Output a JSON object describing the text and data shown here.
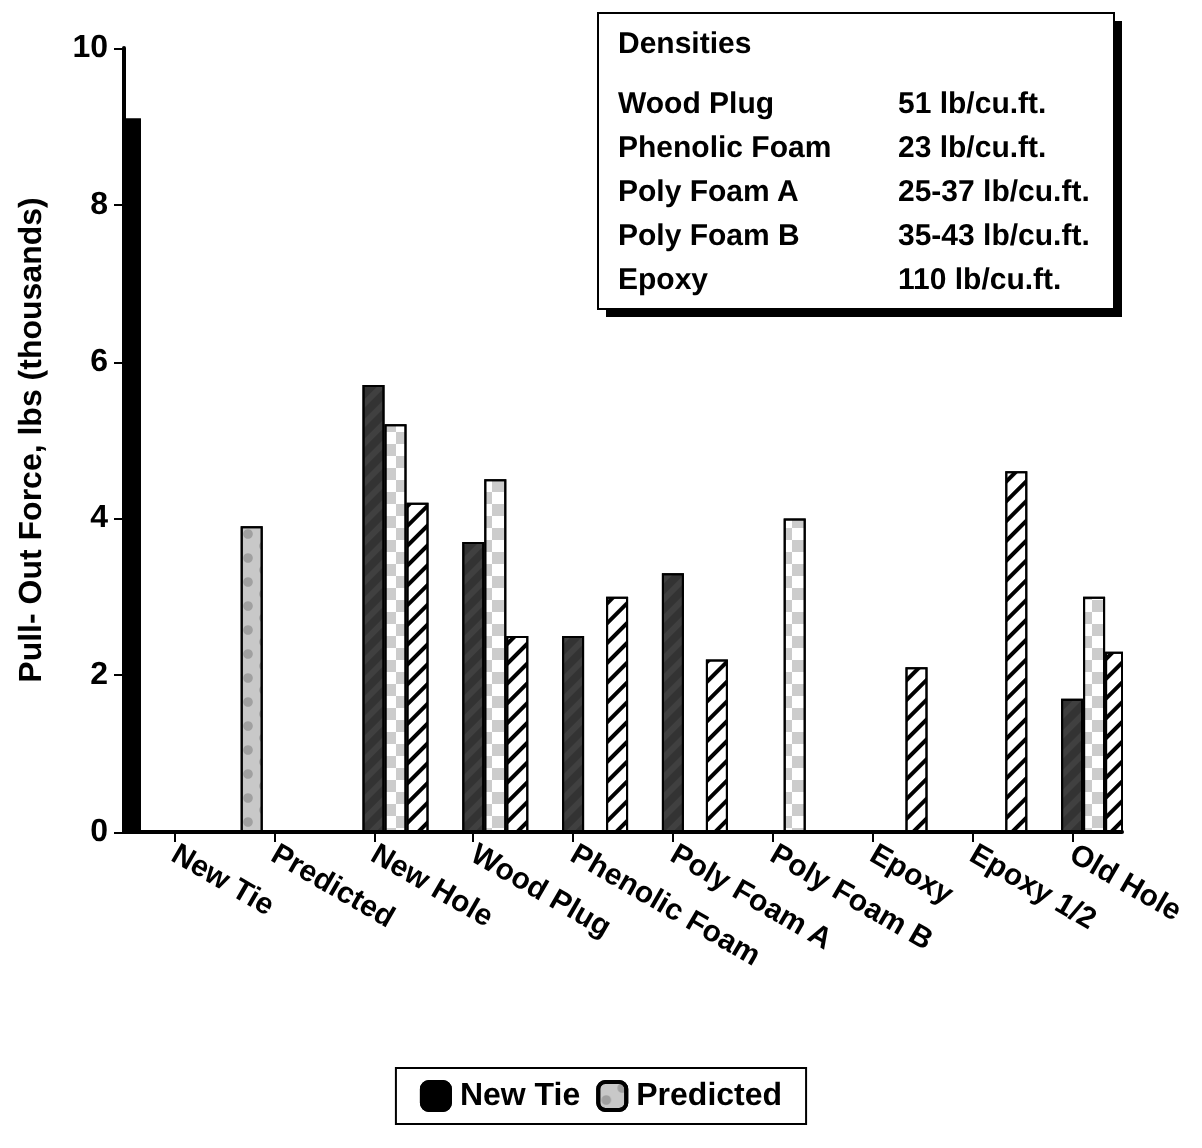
{
  "chart_data": {
    "type": "bar",
    "ylabel": "Pull- Out Force, lbs (thousands)",
    "categories": [
      "New Tie",
      "Predicted",
      "New Hole",
      "Wood Plug",
      "Phenolic Foam",
      "Poly Foam A",
      "Poly Foam B",
      "Epoxy",
      "Epoxy 1/2",
      "Old Hole"
    ],
    "series": [
      {
        "name": "New Tie",
        "color": "#000000",
        "values": [
          9.1,
          null,
          null,
          null,
          null,
          null,
          null,
          null,
          null,
          null
        ]
      },
      {
        "name": "Predicted",
        "color": "#c8c8c8",
        "values": [
          null,
          3.9,
          null,
          null,
          null,
          null,
          null,
          null,
          null,
          null
        ]
      },
      {
        "color": "#404040",
        "values": [
          null,
          null,
          5.7,
          3.7,
          2.5,
          3.3,
          null,
          null,
          null,
          1.7
        ]
      },
      {
        "color": "#ffffff",
        "values": [
          null,
          null,
          5.2,
          4.5,
          null,
          null,
          4.0,
          null,
          null,
          3.0
        ]
      },
      {
        "color": "#ffffff",
        "values": [
          null,
          null,
          4.2,
          2.5,
          3.0,
          2.2,
          null,
          2.1,
          4.6,
          2.3
        ]
      }
    ],
    "ylim": [
      0,
      10
    ],
    "yticks": [
      0,
      2,
      4,
      6,
      8,
      10
    ],
    "legend": "bottom",
    "annotations": [
      "Densities",
      "Wood Plug",
      "51 lb/cu.ft.",
      "Phenolic Foam",
      "23 lb/cu.ft.",
      "Poly Foam A",
      "25-37 lb/cu.ft.",
      "Poly Foam B",
      "35-43 lb/cu.ft.",
      "Epoxy",
      "110 lb/cu.ft."
    ]
  }
}
